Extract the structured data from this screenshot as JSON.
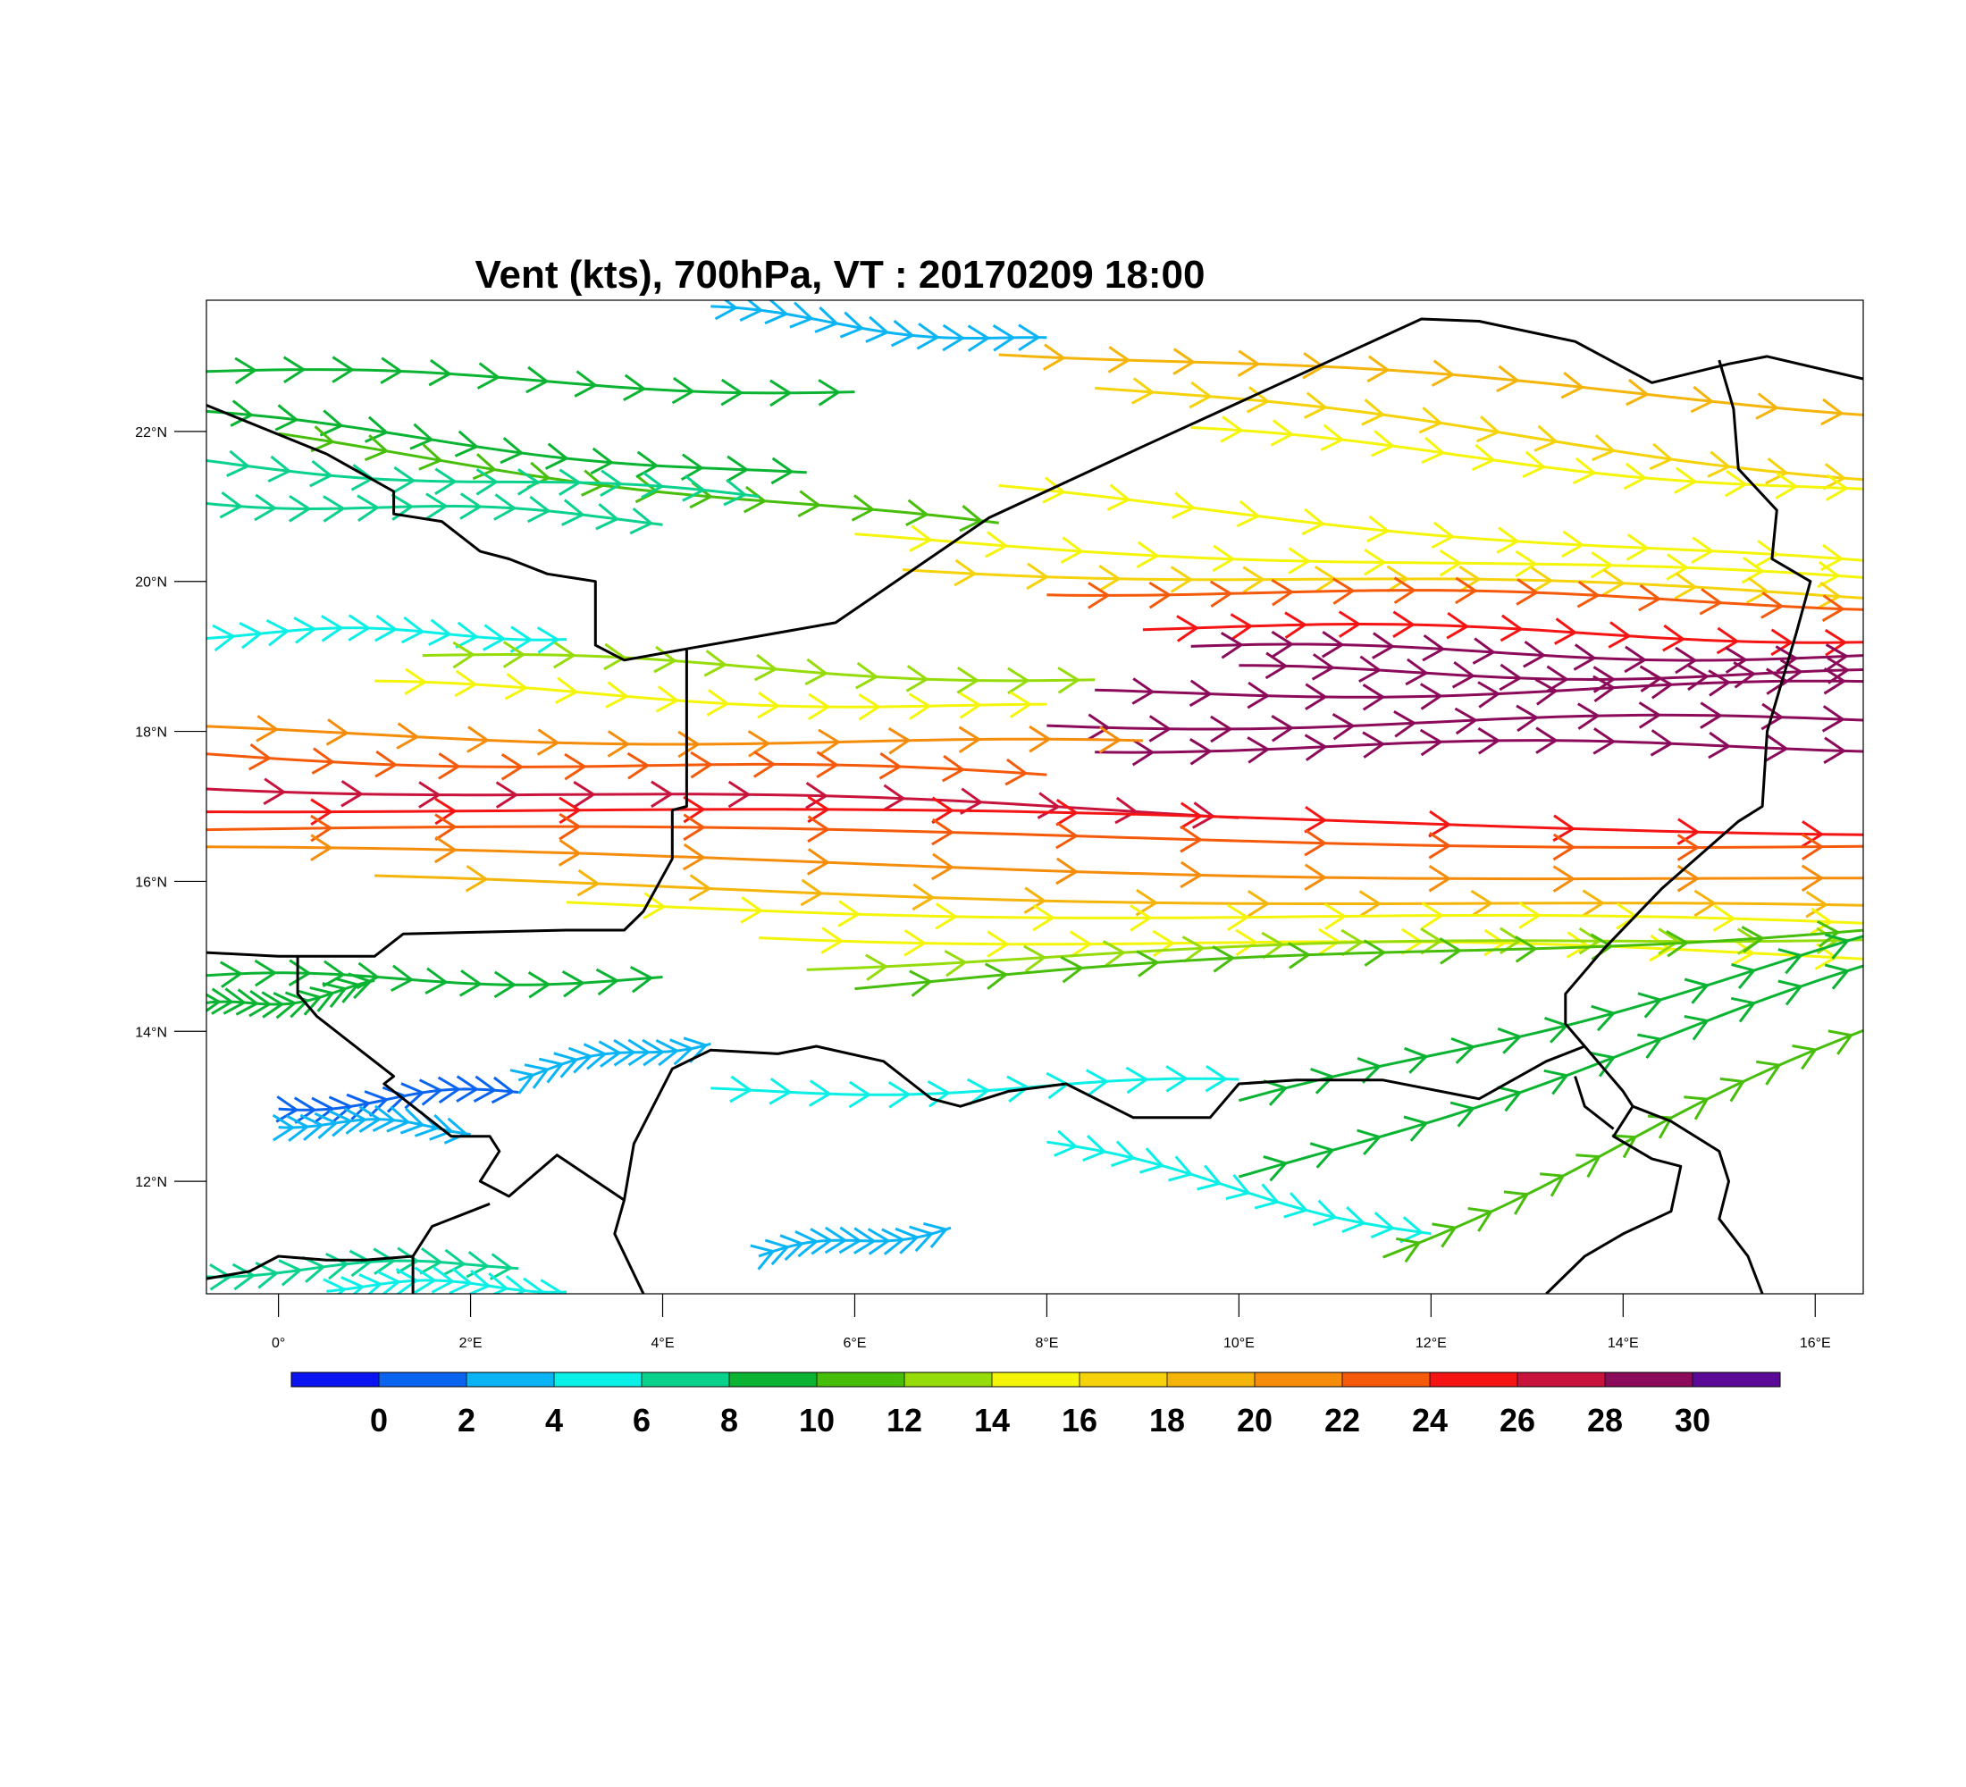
{
  "title": "Vent (kts), 700hPa, VT : 20170209  18:00",
  "map": {
    "lon_range": [
      -0.75,
      16.5
    ],
    "lat_range": [
      10.5,
      23.75
    ],
    "lon_ticks": [
      {
        "value": 0,
        "label": "0°"
      },
      {
        "value": 2,
        "label": "2°E"
      },
      {
        "value": 4,
        "label": "4°E"
      },
      {
        "value": 6,
        "label": "6°E"
      },
      {
        "value": 8,
        "label": "8°E"
      },
      {
        "value": 10,
        "label": "10°E"
      },
      {
        "value": 12,
        "label": "12°E"
      },
      {
        "value": 14,
        "label": "14°E"
      },
      {
        "value": 16,
        "label": "16°E"
      }
    ],
    "lat_ticks": [
      {
        "value": 22,
        "label": "22°N"
      },
      {
        "value": 20,
        "label": "20°N"
      },
      {
        "value": 18,
        "label": "18°N"
      },
      {
        "value": 16,
        "label": "16°N"
      },
      {
        "value": 14,
        "label": "14°N"
      },
      {
        "value": 12,
        "label": "12°N"
      }
    ],
    "borders": [
      [
        [
          -0.75,
          22.35
        ],
        [
          0.5,
          21.7
        ],
        [
          1.2,
          21.2
        ],
        [
          1.2,
          20.9
        ],
        [
          1.7,
          20.8
        ],
        [
          2.1,
          20.4
        ],
        [
          2.4,
          20.3
        ],
        [
          2.8,
          20.1
        ],
        [
          3.3,
          20.0
        ],
        [
          3.3,
          19.6
        ],
        [
          3.3,
          19.15
        ],
        [
          3.6,
          18.95
        ],
        [
          4.25,
          19.1
        ],
        [
          5.8,
          19.45
        ],
        [
          7.4,
          20.85
        ],
        [
          9.0,
          21.8
        ],
        [
          11.9,
          23.5
        ],
        [
          12.5,
          23.47
        ],
        [
          13.5,
          23.2
        ],
        [
          14.3,
          22.65
        ],
        [
          15.1,
          22.9
        ],
        [
          15.5,
          23.0
        ],
        [
          16.5,
          22.7
        ]
      ],
      [
        [
          4.25,
          19.1
        ],
        [
          4.25,
          18.1
        ],
        [
          4.25,
          17.0
        ],
        [
          4.1,
          16.95
        ],
        [
          4.1,
          16.3
        ],
        [
          3.8,
          15.6
        ],
        [
          3.6,
          15.35
        ],
        [
          3.0,
          15.35
        ],
        [
          1.3,
          15.3
        ],
        [
          1.0,
          15.0
        ],
        [
          0.0,
          15.0
        ],
        [
          -0.75,
          15.05
        ]
      ],
      [
        [
          15.0,
          22.95
        ],
        [
          15.15,
          22.3
        ],
        [
          15.2,
          21.5
        ],
        [
          15.6,
          20.95
        ],
        [
          15.55,
          20.3
        ],
        [
          15.95,
          20.0
        ],
        [
          15.8,
          19.3
        ],
        [
          15.5,
          18.0
        ],
        [
          15.45,
          17.0
        ],
        [
          15.2,
          16.8
        ],
        [
          14.4,
          15.9
        ],
        [
          13.8,
          15.1
        ],
        [
          13.4,
          14.5
        ],
        [
          13.4,
          14.1
        ],
        [
          13.6,
          13.8
        ],
        [
          13.2,
          13.6
        ],
        [
          12.5,
          13.1
        ],
        [
          11.5,
          13.35
        ],
        [
          10.6,
          13.35
        ],
        [
          10.0,
          13.3
        ],
        [
          9.7,
          12.85
        ],
        [
          8.9,
          12.85
        ],
        [
          8.2,
          13.3
        ],
        [
          7.6,
          13.2
        ],
        [
          7.1,
          13.0
        ],
        [
          6.8,
          13.1
        ],
        [
          6.3,
          13.6
        ],
        [
          5.6,
          13.8
        ],
        [
          5.2,
          13.7
        ],
        [
          4.5,
          13.75
        ],
        [
          4.1,
          13.5
        ],
        [
          3.7,
          12.5
        ],
        [
          3.6,
          11.75
        ],
        [
          3.5,
          11.3
        ],
        [
          3.8,
          10.5
        ]
      ],
      [
        [
          0.2,
          15.0
        ],
        [
          0.2,
          14.5
        ],
        [
          0.4,
          14.2
        ],
        [
          0.9,
          13.7
        ],
        [
          1.2,
          13.4
        ],
        [
          1.1,
          13.3
        ],
        [
          1.4,
          13.0
        ],
        [
          1.8,
          12.6
        ],
        [
          2.2,
          12.6
        ],
        [
          2.3,
          12.4
        ],
        [
          2.1,
          12.0
        ],
        [
          2.4,
          11.8
        ],
        [
          2.9,
          12.35
        ],
        [
          3.6,
          11.75
        ]
      ],
      [
        [
          -0.75,
          10.7
        ],
        [
          -0.3,
          10.8
        ],
        [
          0.0,
          11.0
        ],
        [
          0.5,
          10.95
        ],
        [
          0.9,
          10.95
        ],
        [
          1.4,
          11.0
        ],
        [
          1.4,
          10.5
        ]
      ],
      [
        [
          2.2,
          11.7
        ],
        [
          1.6,
          11.4
        ],
        [
          1.4,
          11.0
        ]
      ],
      [
        [
          13.6,
          13.8
        ],
        [
          14.0,
          13.2
        ],
        [
          14.1,
          13.0
        ],
        [
          14.5,
          12.8
        ],
        [
          15.0,
          12.4
        ],
        [
          15.1,
          12.0
        ],
        [
          15.0,
          11.5
        ],
        [
          15.3,
          11.0
        ],
        [
          15.45,
          10.5
        ]
      ],
      [
        [
          14.1,
          13.0
        ],
        [
          13.9,
          12.6
        ],
        [
          14.3,
          12.3
        ],
        [
          14.6,
          12.2
        ],
        [
          14.5,
          11.6
        ],
        [
          14.0,
          11.3
        ],
        [
          13.6,
          11.0
        ],
        [
          13.2,
          10.5
        ]
      ],
      [
        [
          13.9,
          12.7
        ],
        [
          13.6,
          13.0
        ],
        [
          13.5,
          13.4
        ]
      ]
    ]
  },
  "colorbar": {
    "colors": [
      "#0a14f0",
      "#0a64f0",
      "#0ab4f5",
      "#0af0e6",
      "#0ad28c",
      "#0ab432",
      "#46be0a",
      "#96dc0a",
      "#f5f50a",
      "#f5d20a",
      "#f5b40a",
      "#f58c0a",
      "#f55a0a",
      "#f51414",
      "#c8143c",
      "#8c0a5a",
      "#5a0a96"
    ],
    "labels": [
      "0",
      "2",
      "4",
      "6",
      "8",
      "10",
      "12",
      "14",
      "16",
      "18",
      "20",
      "22",
      "24",
      "26",
      "28",
      "30"
    ]
  },
  "wind_streams": [
    {
      "lat": 22.8,
      "lon_start": -0.75,
      "lon_end": 6.0,
      "speed": 11,
      "drift": -0.25
    },
    {
      "lat": 22.2,
      "lon_start": -0.75,
      "lon_end": 5.5,
      "speed": 10,
      "drift": -0.8
    },
    {
      "lat": 21.9,
      "lon_start": 0.0,
      "lon_end": 7.5,
      "speed": 13,
      "drift": -1.2
    },
    {
      "lat": 21.6,
      "lon_start": -0.75,
      "lon_end": 5.0,
      "speed": 9,
      "drift": -0.5
    },
    {
      "lat": 21.1,
      "lon_start": -0.75,
      "lon_end": 4.0,
      "speed": 8,
      "drift": -0.3
    },
    {
      "lat": 23.1,
      "lon_start": 7.5,
      "lon_end": 16.5,
      "speed": 20,
      "drift": -0.8
    },
    {
      "lat": 22.6,
      "lon_start": 8.5,
      "lon_end": 16.5,
      "speed": 18,
      "drift": -1.2
    },
    {
      "lat": 22.0,
      "lon_start": 9.5,
      "lon_end": 16.5,
      "speed": 17,
      "drift": -0.8
    },
    {
      "lat": 21.2,
      "lon_start": 7.5,
      "lon_end": 16.5,
      "speed": 16,
      "drift": -1.0
    },
    {
      "lat": 20.6,
      "lon_start": 6.0,
      "lon_end": 16.5,
      "speed": 17,
      "drift": -0.6
    },
    {
      "lat": 20.2,
      "lon_start": 6.5,
      "lon_end": 16.5,
      "speed": 19,
      "drift": -0.4
    },
    {
      "lat": 19.9,
      "lon_start": 8.0,
      "lon_end": 16.5,
      "speed": 25,
      "drift": -0.2
    },
    {
      "lat": 19.4,
      "lon_start": 9.0,
      "lon_end": 16.5,
      "speed": 27,
      "drift": -0.15
    },
    {
      "lat": 19.1,
      "lon_start": 9.5,
      "lon_end": 16.5,
      "speed": 30,
      "drift": -0.1
    },
    {
      "lat": 18.8,
      "lon_start": 10.0,
      "lon_end": 16.5,
      "speed": 31,
      "drift": -0.05
    },
    {
      "lat": 18.5,
      "lon_start": 8.5,
      "lon_end": 16.5,
      "speed": 30,
      "drift": 0.1
    },
    {
      "lat": 18.1,
      "lon_start": 8.0,
      "lon_end": 16.5,
      "speed": 31,
      "drift": 0.05
    },
    {
      "lat": 17.8,
      "lon_start": 8.5,
      "lon_end": 16.5,
      "speed": 30,
      "drift": 0.0
    },
    {
      "lat": 19.3,
      "lon_start": -0.75,
      "lon_end": 3.0,
      "speed": 7,
      "drift": 0.0
    },
    {
      "lat": 19.0,
      "lon_start": 1.5,
      "lon_end": 8.5,
      "speed": 15,
      "drift": -0.3
    },
    {
      "lat": 18.6,
      "lon_start": 1.0,
      "lon_end": 8.0,
      "speed": 16,
      "drift": -0.3
    },
    {
      "lat": 18.0,
      "lon_start": -0.75,
      "lon_end": 9.0,
      "speed": 22,
      "drift": -0.2
    },
    {
      "lat": 17.7,
      "lon_start": -0.75,
      "lon_end": 8.0,
      "speed": 25,
      "drift": -0.3
    },
    {
      "lat": 17.3,
      "lon_start": -0.75,
      "lon_end": 10.0,
      "speed": 28,
      "drift": -0.4
    },
    {
      "lat": 17.0,
      "lon_start": -0.75,
      "lon_end": 16.5,
      "speed": 27,
      "drift": -0.3
    },
    {
      "lat": 16.7,
      "lon_start": -0.75,
      "lon_end": 16.5,
      "speed": 25,
      "drift": -0.2
    },
    {
      "lat": 16.4,
      "lon_start": -0.75,
      "lon_end": 16.5,
      "speed": 22,
      "drift": -0.4
    },
    {
      "lat": 16.0,
      "lon_start": 1.0,
      "lon_end": 16.5,
      "speed": 20,
      "drift": -0.4
    },
    {
      "lat": 15.7,
      "lon_start": 3.0,
      "lon_end": 16.5,
      "speed": 17,
      "drift": -0.3
    },
    {
      "lat": 15.3,
      "lon_start": 5.0,
      "lon_end": 16.5,
      "speed": 16,
      "drift": -0.3
    },
    {
      "lat": 14.9,
      "lon_start": 5.5,
      "lon_end": 16.5,
      "speed": 14,
      "drift": 0.4
    },
    {
      "lat": 14.6,
      "lon_start": 6.0,
      "lon_end": 16.5,
      "speed": 12,
      "drift": 0.8
    },
    {
      "lat": 14.7,
      "lon_start": -0.75,
      "lon_end": 4.0,
      "speed": 11,
      "drift": 0.0
    },
    {
      "lat": 14.3,
      "lon_start": -0.75,
      "lon_end": 1.0,
      "speed": 10,
      "drift": 0.3
    },
    {
      "lat": 13.2,
      "lon_start": 4.5,
      "lon_end": 10.0,
      "speed": 7,
      "drift": 0.1
    },
    {
      "lat": 13.0,
      "lon_start": 0.0,
      "lon_end": 2.5,
      "speed": 2,
      "drift": 0.2
    },
    {
      "lat": 12.8,
      "lon_start": 0.0,
      "lon_end": 2.0,
      "speed": 5,
      "drift": -0.1
    },
    {
      "lat": 13.4,
      "lon_start": 2.5,
      "lon_end": 4.5,
      "speed": 4,
      "drift": 0.5
    },
    {
      "lat": 12.5,
      "lon_start": 8.0,
      "lon_end": 12.0,
      "speed": 6,
      "drift": -1.2
    },
    {
      "lat": 13.0,
      "lon_start": 10.0,
      "lon_end": 16.5,
      "speed": 11,
      "drift": 2.2
    },
    {
      "lat": 12.0,
      "lon_start": 10.0,
      "lon_end": 16.5,
      "speed": 10,
      "drift": 2.8
    },
    {
      "lat": 11.0,
      "lon_start": 11.5,
      "lon_end": 16.5,
      "speed": 12,
      "drift": 3.0
    },
    {
      "lat": 10.8,
      "lon_start": -0.75,
      "lon_end": 2.5,
      "speed": 8,
      "drift": 0.1
    },
    {
      "lat": 10.6,
      "lon_start": 0.5,
      "lon_end": 3.0,
      "speed": 6,
      "drift": 0.0
    },
    {
      "lat": 11.0,
      "lon_start": 5.0,
      "lon_end": 7.0,
      "speed": 4,
      "drift": 0.4
    },
    {
      "lat": 23.6,
      "lon_start": 4.5,
      "lon_end": 8.0,
      "speed": 5,
      "drift": -0.4
    }
  ]
}
